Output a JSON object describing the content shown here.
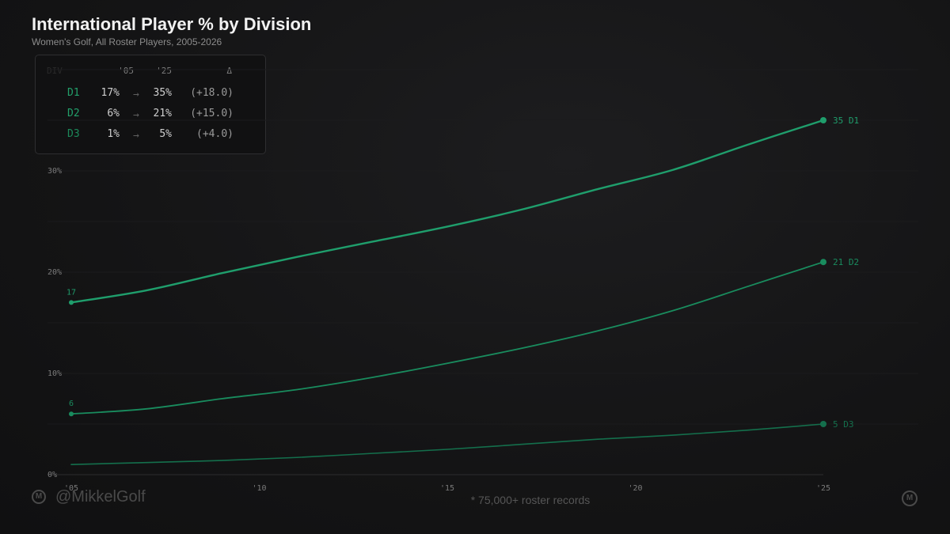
{
  "header": {
    "title": "International Player % by Division",
    "subtitle": "Women's Golf, All Roster Players, 2005-2026"
  },
  "summary_table": {
    "headers": {
      "blank": "DIV",
      "start": "'05",
      "end": "'25",
      "delta": "Δ"
    },
    "rows": [
      {
        "division": "D1",
        "start": "17%",
        "arrow": "→",
        "end": "35%",
        "delta": "(+18.0)"
      },
      {
        "division": "D2",
        "start": "6%",
        "arrow": "→",
        "end": "21%",
        "delta": "(+15.0)"
      },
      {
        "division": "D3",
        "start": "1%",
        "arrow": "→",
        "end": "5%",
        "delta": "(+4.0)"
      }
    ]
  },
  "chart_data": {
    "type": "line",
    "x": [
      2005,
      2007,
      2009,
      2011,
      2013,
      2015,
      2017,
      2019,
      2021,
      2023,
      2025
    ],
    "xticks": [
      2005,
      2010,
      2015,
      2020,
      2025
    ],
    "xtick_labels": [
      "'05",
      "'10",
      "'15",
      "'20",
      "'25"
    ],
    "yticks": [
      0,
      10,
      20,
      30
    ],
    "ytick_labels": [
      "0%",
      "10%",
      "20%",
      "30%"
    ],
    "xlim": [
      2005,
      2025
    ],
    "ylim": [
      0,
      30
    ],
    "grid": true,
    "series": [
      {
        "name": "D1",
        "color": "#1f9e6c",
        "values": [
          17,
          18.2,
          19.9,
          21.5,
          23,
          24.5,
          26.2,
          28.2,
          30.1,
          32.6,
          35
        ],
        "start_label": "17",
        "end_label": "35 D1"
      },
      {
        "name": "D2",
        "color": "#198c5e",
        "values": [
          6,
          6.5,
          7.5,
          8.4,
          9.6,
          11,
          12.5,
          14.2,
          16.2,
          18.6,
          21
        ],
        "start_label": "6",
        "end_label": "21 D2"
      },
      {
        "name": "D3",
        "color": "#146f4c",
        "values": [
          1,
          1.2,
          1.4,
          1.7,
          2.1,
          2.5,
          3,
          3.5,
          3.9,
          4.4,
          5
        ],
        "start_label": "",
        "end_label": "5 D3"
      }
    ]
  },
  "footer": {
    "handle": "@MikkelGolf",
    "footnote": "* 75,000+ roster records",
    "logo_letter": "M"
  }
}
